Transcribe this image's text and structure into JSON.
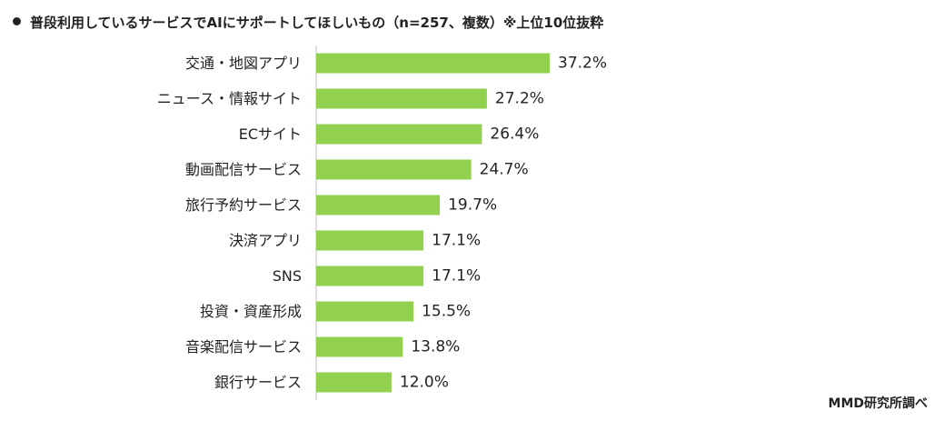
{
  "title": "普段利用しているサービスでAIにサポートしてほしいもの（n=257、複数）※上位10位抜粋",
  "source": "MMD研究所調べ",
  "colors": {
    "bar": "#92d050",
    "axis": "#bfbfbf",
    "text": "#222222"
  },
  "chart_data": {
    "type": "bar",
    "orientation": "horizontal",
    "categories": [
      "交通・地図アプリ",
      "ニュース・情報サイト",
      "ECサイト",
      "動画配信サービス",
      "旅行予約サービス",
      "決済アプリ",
      "SNS",
      "投資・資産形成",
      "音楽配信サービス",
      "銀行サービス"
    ],
    "values": [
      37.2,
      27.2,
      26.4,
      24.7,
      19.7,
      17.1,
      17.1,
      15.5,
      13.8,
      12.0
    ],
    "value_labels": [
      "37.2%",
      "27.2%",
      "26.4%",
      "24.7%",
      "19.7%",
      "17.1%",
      "17.1%",
      "15.5%",
      "13.8%",
      "12.0%"
    ],
    "xlim": [
      0,
      40
    ],
    "grid": false,
    "legend": "none"
  }
}
